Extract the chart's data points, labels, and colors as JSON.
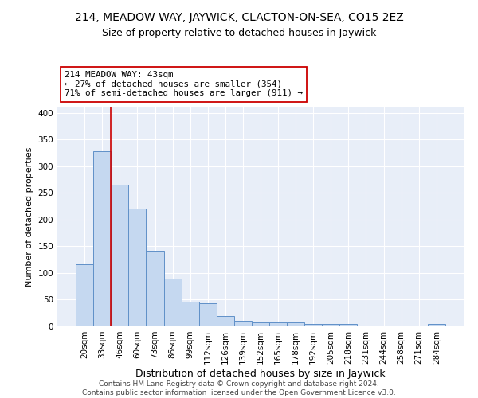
{
  "title": "214, MEADOW WAY, JAYWICK, CLACTON-ON-SEA, CO15 2EZ",
  "subtitle": "Size of property relative to detached houses in Jaywick",
  "xlabel": "Distribution of detached houses by size in Jaywick",
  "ylabel": "Number of detached properties",
  "categories": [
    "20sqm",
    "33sqm",
    "46sqm",
    "60sqm",
    "73sqm",
    "86sqm",
    "99sqm",
    "112sqm",
    "126sqm",
    "139sqm",
    "152sqm",
    "165sqm",
    "178sqm",
    "192sqm",
    "205sqm",
    "218sqm",
    "231sqm",
    "244sqm",
    "258sqm",
    "271sqm",
    "284sqm"
  ],
  "values": [
    117,
    328,
    265,
    220,
    142,
    90,
    46,
    43,
    20,
    10,
    8,
    8,
    8,
    4,
    4,
    4,
    0,
    0,
    0,
    0,
    5
  ],
  "bar_color": "#c5d8f0",
  "bar_edge_color": "#6090c8",
  "vline_x": 1.5,
  "vline_color": "#cc0000",
  "annotation_text": "214 MEADOW WAY: 43sqm\n← 27% of detached houses are smaller (354)\n71% of semi-detached houses are larger (911) →",
  "annotation_box_color": "white",
  "annotation_box_edge_color": "#cc0000",
  "ylim": [
    0,
    410
  ],
  "yticks": [
    0,
    50,
    100,
    150,
    200,
    250,
    300,
    350,
    400
  ],
  "background_color": "#e8eef8",
  "footer": "Contains HM Land Registry data © Crown copyright and database right 2024.\nContains public sector information licensed under the Open Government Licence v3.0.",
  "title_fontsize": 10,
  "subtitle_fontsize": 9,
  "xlabel_fontsize": 9,
  "ylabel_fontsize": 8,
  "tick_fontsize": 7.5,
  "footer_fontsize": 6.5
}
